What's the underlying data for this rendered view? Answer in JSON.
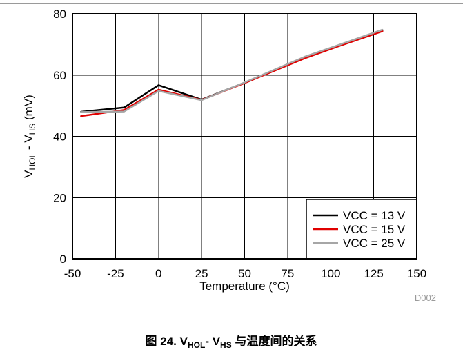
{
  "figure_id": "D002",
  "caption": [
    {
      "text": "图 24. V"
    },
    {
      "text": "HOL",
      "sub": true
    },
    {
      "text": "- V"
    },
    {
      "text": "HS",
      "sub": true
    },
    {
      "text": " 与温度间的关系"
    }
  ],
  "chart_data": {
    "type": "line",
    "xlabel": "Temperature (°C)",
    "ylabel": [
      {
        "text": "V"
      },
      {
        "text": "HOL",
        "sub": true
      },
      {
        "text": " - V"
      },
      {
        "text": "HS",
        "sub": true
      },
      {
        "text": " (mV)"
      }
    ],
    "xlim": [
      -50,
      150
    ],
    "ylim": [
      0,
      80
    ],
    "x_ticks": [
      -50,
      -25,
      0,
      25,
      50,
      75,
      100,
      125,
      150
    ],
    "y_ticks": [
      0,
      20,
      40,
      60,
      80
    ],
    "grid": true,
    "legend_position": "bottom-right",
    "x": [
      -45,
      -20,
      0,
      25,
      50,
      85,
      105,
      130
    ],
    "series": [
      {
        "name": "VCC = 13 V",
        "color": "#000000",
        "values": [
          48.0,
          49.4,
          56.7,
          52.0,
          57.5,
          65.6,
          69.6,
          74.4
        ]
      },
      {
        "name": "VCC = 15 V",
        "color": "#e00000",
        "values": [
          46.6,
          48.6,
          55.2,
          51.9,
          57.4,
          65.5,
          69.5,
          74.3
        ]
      },
      {
        "name": "VCC = 25 V",
        "color": "#a6a6a6",
        "values": [
          47.9,
          48.1,
          54.8,
          51.8,
          57.6,
          66.0,
          69.9,
          74.8
        ]
      }
    ]
  }
}
